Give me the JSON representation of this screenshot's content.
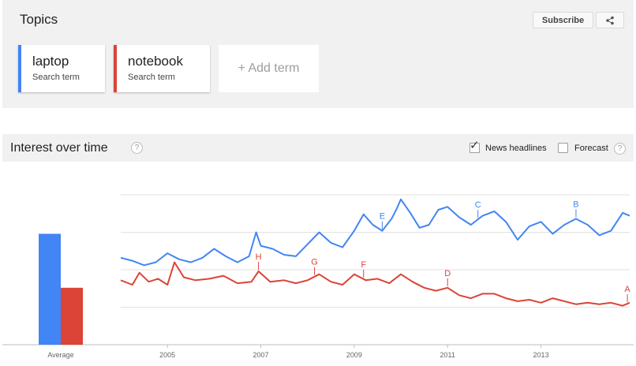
{
  "topics": {
    "title": "Topics",
    "subscribe_label": "Subscribe",
    "share_icon": "share-icon",
    "terms": [
      {
        "name": "laptop",
        "subtitle": "Search term",
        "color": "#4285f4"
      },
      {
        "name": "notebook",
        "subtitle": "Search term",
        "color": "#db4437"
      }
    ],
    "add_term_label": "+ Add term"
  },
  "interest_over_time": {
    "title": "Interest over time",
    "help_label": "?",
    "news_headlines_label": "News headlines",
    "news_headlines_checked": true,
    "forecast_label": "Forecast",
    "forecast_checked": false,
    "forecast_help_label": "?"
  },
  "chart_data": {
    "type": "line",
    "title": "",
    "xlabel": "",
    "ylabel": "",
    "x_ticks": [
      "2005",
      "2007",
      "2009",
      "2011",
      "2013"
    ],
    "x_range": [
      2004.0,
      2014.9
    ],
    "ylim": [
      0,
      100
    ],
    "grid": true,
    "average": {
      "label": "Average",
      "values": [
        {
          "term": "laptop",
          "value": 74
        },
        {
          "term": "notebook",
          "value": 38
        }
      ]
    },
    "series": [
      {
        "name": "laptop",
        "color": "#4285f4",
        "points": [
          [
            2004.0,
            58
          ],
          [
            2004.25,
            56
          ],
          [
            2004.5,
            53
          ],
          [
            2004.75,
            55
          ],
          [
            2005.0,
            61
          ],
          [
            2005.25,
            57
          ],
          [
            2005.5,
            55
          ],
          [
            2005.75,
            58
          ],
          [
            2006.0,
            64
          ],
          [
            2006.25,
            59
          ],
          [
            2006.5,
            55
          ],
          [
            2006.75,
            59
          ],
          [
            2006.9,
            75
          ],
          [
            2007.0,
            66
          ],
          [
            2007.25,
            64
          ],
          [
            2007.5,
            60
          ],
          [
            2007.75,
            59
          ],
          [
            2008.0,
            67
          ],
          [
            2008.25,
            75
          ],
          [
            2008.5,
            68
          ],
          [
            2008.75,
            65
          ],
          [
            2009.0,
            76
          ],
          [
            2009.2,
            87
          ],
          [
            2009.4,
            80
          ],
          [
            2009.6,
            76
          ],
          [
            2009.8,
            84
          ],
          [
            2009.9,
            90
          ],
          [
            2010.0,
            97
          ],
          [
            2010.2,
            88
          ],
          [
            2010.4,
            78
          ],
          [
            2010.6,
            80
          ],
          [
            2010.8,
            90
          ],
          [
            2011.0,
            92
          ],
          [
            2011.25,
            85
          ],
          [
            2011.5,
            80
          ],
          [
            2011.75,
            86
          ],
          [
            2012.0,
            89
          ],
          [
            2012.25,
            82
          ],
          [
            2012.5,
            70
          ],
          [
            2012.75,
            79
          ],
          [
            2013.0,
            82
          ],
          [
            2013.25,
            74
          ],
          [
            2013.5,
            80
          ],
          [
            2013.75,
            84
          ],
          [
            2014.0,
            80
          ],
          [
            2014.25,
            73
          ],
          [
            2014.5,
            76
          ],
          [
            2014.75,
            88
          ],
          [
            2014.9,
            86
          ]
        ]
      },
      {
        "name": "notebook",
        "color": "#db4437",
        "points": [
          [
            2004.0,
            43
          ],
          [
            2004.25,
            40
          ],
          [
            2004.4,
            48
          ],
          [
            2004.6,
            42
          ],
          [
            2004.8,
            44
          ],
          [
            2005.0,
            40
          ],
          [
            2005.15,
            55
          ],
          [
            2005.35,
            45
          ],
          [
            2005.6,
            43
          ],
          [
            2005.9,
            44
          ],
          [
            2006.2,
            46
          ],
          [
            2006.5,
            41
          ],
          [
            2006.8,
            42
          ],
          [
            2006.95,
            49
          ],
          [
            2007.2,
            42
          ],
          [
            2007.5,
            43
          ],
          [
            2007.75,
            41
          ],
          [
            2008.0,
            43
          ],
          [
            2008.25,
            47
          ],
          [
            2008.5,
            42
          ],
          [
            2008.75,
            40
          ],
          [
            2009.0,
            47
          ],
          [
            2009.25,
            43
          ],
          [
            2009.5,
            44
          ],
          [
            2009.75,
            41
          ],
          [
            2010.0,
            47
          ],
          [
            2010.25,
            42
          ],
          [
            2010.5,
            38
          ],
          [
            2010.75,
            36
          ],
          [
            2011.0,
            38
          ],
          [
            2011.25,
            33
          ],
          [
            2011.5,
            31
          ],
          [
            2011.75,
            34
          ],
          [
            2012.0,
            34
          ],
          [
            2012.25,
            31
          ],
          [
            2012.5,
            29
          ],
          [
            2012.75,
            30
          ],
          [
            2013.0,
            28
          ],
          [
            2013.25,
            31
          ],
          [
            2013.5,
            29
          ],
          [
            2013.75,
            27
          ],
          [
            2014.0,
            28
          ],
          [
            2014.25,
            27
          ],
          [
            2014.5,
            28
          ],
          [
            2014.75,
            26
          ],
          [
            2014.9,
            28
          ]
        ]
      }
    ],
    "annotations": [
      {
        "label": "A",
        "x": 2014.85,
        "series": "notebook"
      },
      {
        "label": "B",
        "x": 2013.75,
        "series": "laptop"
      },
      {
        "label": "C",
        "x": 2011.65,
        "series": "laptop"
      },
      {
        "label": "D",
        "x": 2011.0,
        "series": "notebook"
      },
      {
        "label": "E",
        "x": 2009.6,
        "series": "laptop"
      },
      {
        "label": "F",
        "x": 2009.2,
        "series": "notebook"
      },
      {
        "label": "G",
        "x": 2008.15,
        "series": "notebook"
      },
      {
        "label": "H",
        "x": 2006.95,
        "series": "notebook"
      }
    ]
  }
}
